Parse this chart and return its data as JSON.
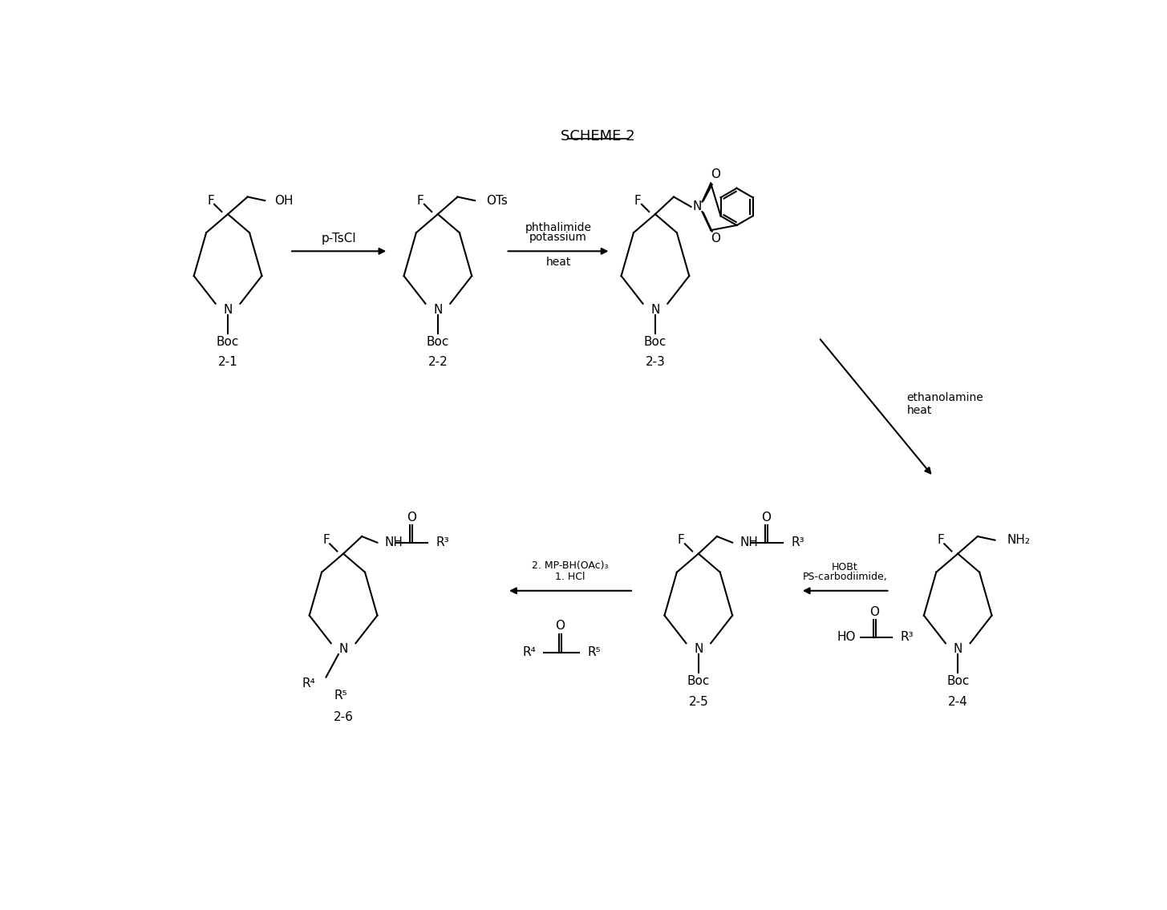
{
  "title": "SCHEME 2",
  "background_color": "#ffffff",
  "line_color": "#000000",
  "text_color": "#000000",
  "compounds": [
    "2-1",
    "2-2",
    "2-3",
    "2-4",
    "2-5",
    "2-6"
  ],
  "reagents": {
    "arrow1": "p-TsCl",
    "arrow2_line1": "potassium",
    "arrow2_line2": "phthalimide",
    "arrow2_line3": "heat",
    "arrow3_line1": "ethanolamine",
    "arrow3_line2": "heat",
    "arrow4_line1": "PS-carbodiimide,",
    "arrow4_line2": "HOBt",
    "arrow5_line1": "1. HCl",
    "arrow5_line2": "2. MP-BH(OAc)₃"
  }
}
